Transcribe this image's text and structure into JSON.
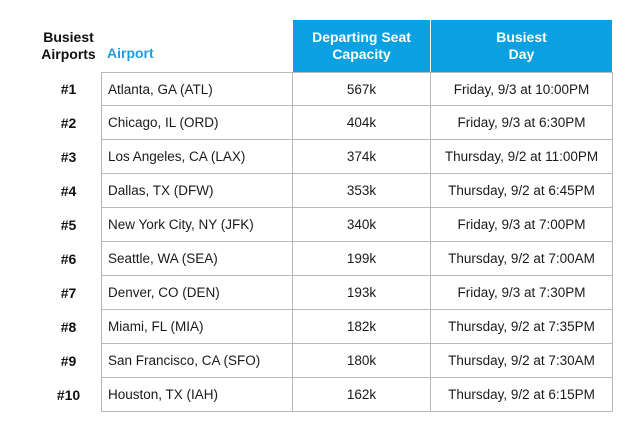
{
  "header": {
    "rank_label": "Busiest Airports",
    "rank_label_line1": "Busiest",
    "rank_label_line2": "Airports",
    "airport_label": "Airport",
    "capacity_line1": "Departing Seat",
    "capacity_line2": "Capacity",
    "day_line1": "Busiest",
    "day_line2": "Day"
  },
  "colors": {
    "header_bg": "#0aa1e2",
    "airport_header_text": "#1e9ee0"
  },
  "rows": [
    {
      "rank": "#1",
      "airport": "Atlanta, GA (ATL)",
      "capacity": "567k",
      "day": "Friday, 9/3 at 10:00PM"
    },
    {
      "rank": "#2",
      "airport": "Chicago, IL (ORD)",
      "capacity": "404k",
      "day": "Friday, 9/3 at 6:30PM"
    },
    {
      "rank": "#3",
      "airport": "Los Angeles, CA (LAX)",
      "capacity": "374k",
      "day": "Thursday, 9/2 at 11:00PM"
    },
    {
      "rank": "#4",
      "airport": "Dallas, TX (DFW)",
      "capacity": "353k",
      "day": "Thursday, 9/2 at 6:45PM"
    },
    {
      "rank": "#5",
      "airport": "New York City, NY (JFK)",
      "capacity": "340k",
      "day": "Friday, 9/3 at 7:00PM"
    },
    {
      "rank": "#6",
      "airport": "Seattle, WA (SEA)",
      "capacity": "199k",
      "day": "Thursday, 9/2 at 7:00AM"
    },
    {
      "rank": "#7",
      "airport": "Denver, CO (DEN)",
      "capacity": "193k",
      "day": "Friday, 9/3 at 7:30PM"
    },
    {
      "rank": "#8",
      "airport": "Miami, FL (MIA)",
      "capacity": "182k",
      "day": "Thursday, 9/2 at 7:35PM"
    },
    {
      "rank": "#9",
      "airport": "San Francisco, CA (SFO)",
      "capacity": "180k",
      "day": "Thursday, 9/2 at 7:30AM"
    },
    {
      "rank": "#10",
      "airport": "Houston, TX (IAH)",
      "capacity": "162k",
      "day": "Thursday, 9/2 at 6:15PM"
    }
  ]
}
